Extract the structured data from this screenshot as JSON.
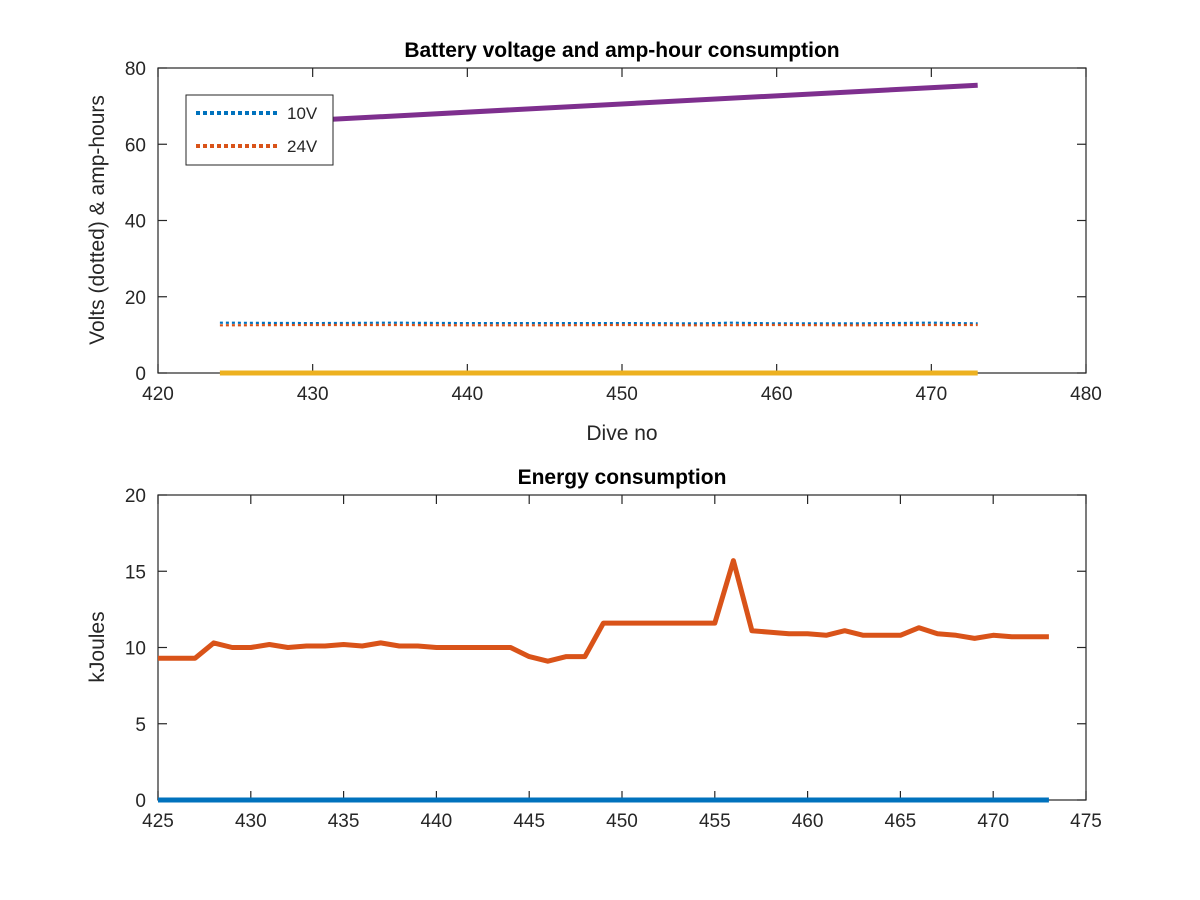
{
  "chart_data": [
    {
      "type": "line",
      "title": "Battery voltage and amp-hour consumption",
      "xlabel": "Dive no",
      "ylabel": "Volts (dotted) & amp-hours",
      "xlim": [
        420,
        480
      ],
      "ylim": [
        0,
        80
      ],
      "xticks": [
        420,
        430,
        440,
        450,
        460,
        470,
        480
      ],
      "yticks": [
        0,
        20,
        40,
        60,
        80
      ],
      "grid": false,
      "legend_position": "top-left",
      "series": [
        {
          "name": "10V",
          "style": "dotted",
          "color": "#0072BD",
          "x": [
            424,
            430,
            435,
            440,
            445,
            450,
            455,
            457,
            460,
            465,
            470,
            473
          ],
          "y": [
            13.2,
            13.1,
            13.2,
            13.1,
            13.1,
            13.1,
            13.0,
            13.2,
            13.0,
            13.0,
            13.2,
            13.0
          ]
        },
        {
          "name": "24V",
          "style": "dotted",
          "color": "#D95319",
          "x": [
            424,
            430,
            435,
            440,
            445,
            450,
            455,
            460,
            465,
            470,
            473
          ],
          "y": [
            12.5,
            12.6,
            12.6,
            12.5,
            12.5,
            12.6,
            12.5,
            12.6,
            12.5,
            12.6,
            12.6
          ]
        },
        {
          "style": "solid",
          "color": "#7E2F8E",
          "x": [
            424,
            473
          ],
          "y": [
            65.0,
            75.5
          ]
        },
        {
          "style": "solid",
          "color": "#EDB120",
          "x": [
            424,
            473
          ],
          "y": [
            0,
            0
          ]
        }
      ]
    },
    {
      "type": "line",
      "title": "Energy consumption",
      "xlabel": "",
      "ylabel": "kJoules",
      "xlim": [
        425,
        475
      ],
      "ylim": [
        0,
        20
      ],
      "xticks": [
        425,
        430,
        435,
        440,
        445,
        450,
        455,
        460,
        465,
        470,
        475
      ],
      "yticks": [
        0,
        5,
        10,
        15,
        20
      ],
      "grid": false,
      "series": [
        {
          "style": "solid",
          "color": "#D95319",
          "x": [
            425,
            426,
            427,
            428,
            429,
            430,
            431,
            432,
            433,
            434,
            435,
            436,
            437,
            438,
            439,
            440,
            441,
            442,
            443,
            444,
            445,
            446,
            447,
            448,
            449,
            450,
            451,
            452,
            453,
            454,
            455,
            456,
            457,
            458,
            459,
            460,
            461,
            462,
            463,
            464,
            465,
            466,
            467,
            468,
            469,
            470,
            471,
            472,
            473
          ],
          "y": [
            9.3,
            9.3,
            9.3,
            10.3,
            10.0,
            10.0,
            10.2,
            10.0,
            10.1,
            10.1,
            10.2,
            10.1,
            10.3,
            10.1,
            10.1,
            10.0,
            10.0,
            10.0,
            10.0,
            10.0,
            9.4,
            9.1,
            9.4,
            9.4,
            11.6,
            11.6,
            11.6,
            11.6,
            11.6,
            11.6,
            11.6,
            15.7,
            11.1,
            11.0,
            10.9,
            10.9,
            10.8,
            11.1,
            10.8,
            10.8,
            10.8,
            11.3,
            10.9,
            10.8,
            10.6,
            10.8,
            10.7,
            10.7,
            10.7
          ]
        },
        {
          "style": "solid",
          "color": "#0072BD",
          "x": [
            425,
            473
          ],
          "y": [
            0,
            0
          ]
        }
      ]
    }
  ]
}
